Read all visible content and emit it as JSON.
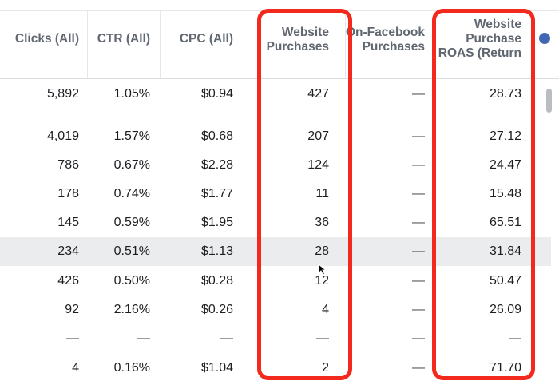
{
  "headers": {
    "clicks": [
      "Clicks (All)"
    ],
    "ctr": [
      "CTR (All)"
    ],
    "cpc": [
      "CPC (All)"
    ],
    "website_purchases": [
      "Website",
      "Purchases"
    ],
    "onfb_purchases": [
      "On-Facebook",
      "Purchases"
    ],
    "roas": [
      "Website",
      "Purchase",
      "ROAS (Return"
    ]
  },
  "rows": [
    {
      "clicks": "5,892",
      "ctr": "1.05%",
      "cpc": "$0.94",
      "website_purchases": "427",
      "onfb_purchases": "—",
      "roas": "28.73"
    },
    {
      "clicks": "4,019",
      "ctr": "1.57%",
      "cpc": "$0.68",
      "website_purchases": "207",
      "onfb_purchases": "—",
      "roas": "27.12"
    },
    {
      "clicks": "786",
      "ctr": "0.67%",
      "cpc": "$2.28",
      "website_purchases": "124",
      "onfb_purchases": "—",
      "roas": "24.47"
    },
    {
      "clicks": "178",
      "ctr": "0.74%",
      "cpc": "$1.77",
      "website_purchases": "11",
      "onfb_purchases": "—",
      "roas": "15.48"
    },
    {
      "clicks": "145",
      "ctr": "0.59%",
      "cpc": "$1.95",
      "website_purchases": "36",
      "onfb_purchases": "—",
      "roas": "65.51"
    },
    {
      "clicks": "234",
      "ctr": "0.51%",
      "cpc": "$1.13",
      "website_purchases": "28",
      "onfb_purchases": "—",
      "roas": "31.84"
    },
    {
      "clicks": "426",
      "ctr": "0.50%",
      "cpc": "$0.28",
      "website_purchases": "12",
      "onfb_purchases": "—",
      "roas": "50.47"
    },
    {
      "clicks": "92",
      "ctr": "2.16%",
      "cpc": "$0.26",
      "website_purchases": "4",
      "onfb_purchases": "—",
      "roas": "26.09"
    },
    {
      "clicks": "—",
      "ctr": "—",
      "cpc": "—",
      "website_purchases": "—",
      "onfb_purchases": "—",
      "roas": "—"
    },
    {
      "clicks": "4",
      "ctr": "0.16%",
      "cpc": "$1.04",
      "website_purchases": "2",
      "onfb_purchases": "—",
      "roas": "71.70"
    }
  ],
  "highlighted_row_index": 5,
  "colors": {
    "annotation_red": "#f2291c",
    "header_text": "#606770",
    "row_highlight": "#ebeced",
    "info_icon": "#4267b2"
  },
  "icons": {
    "column_info": "info-icon",
    "pointer": "mouse-cursor-icon"
  }
}
